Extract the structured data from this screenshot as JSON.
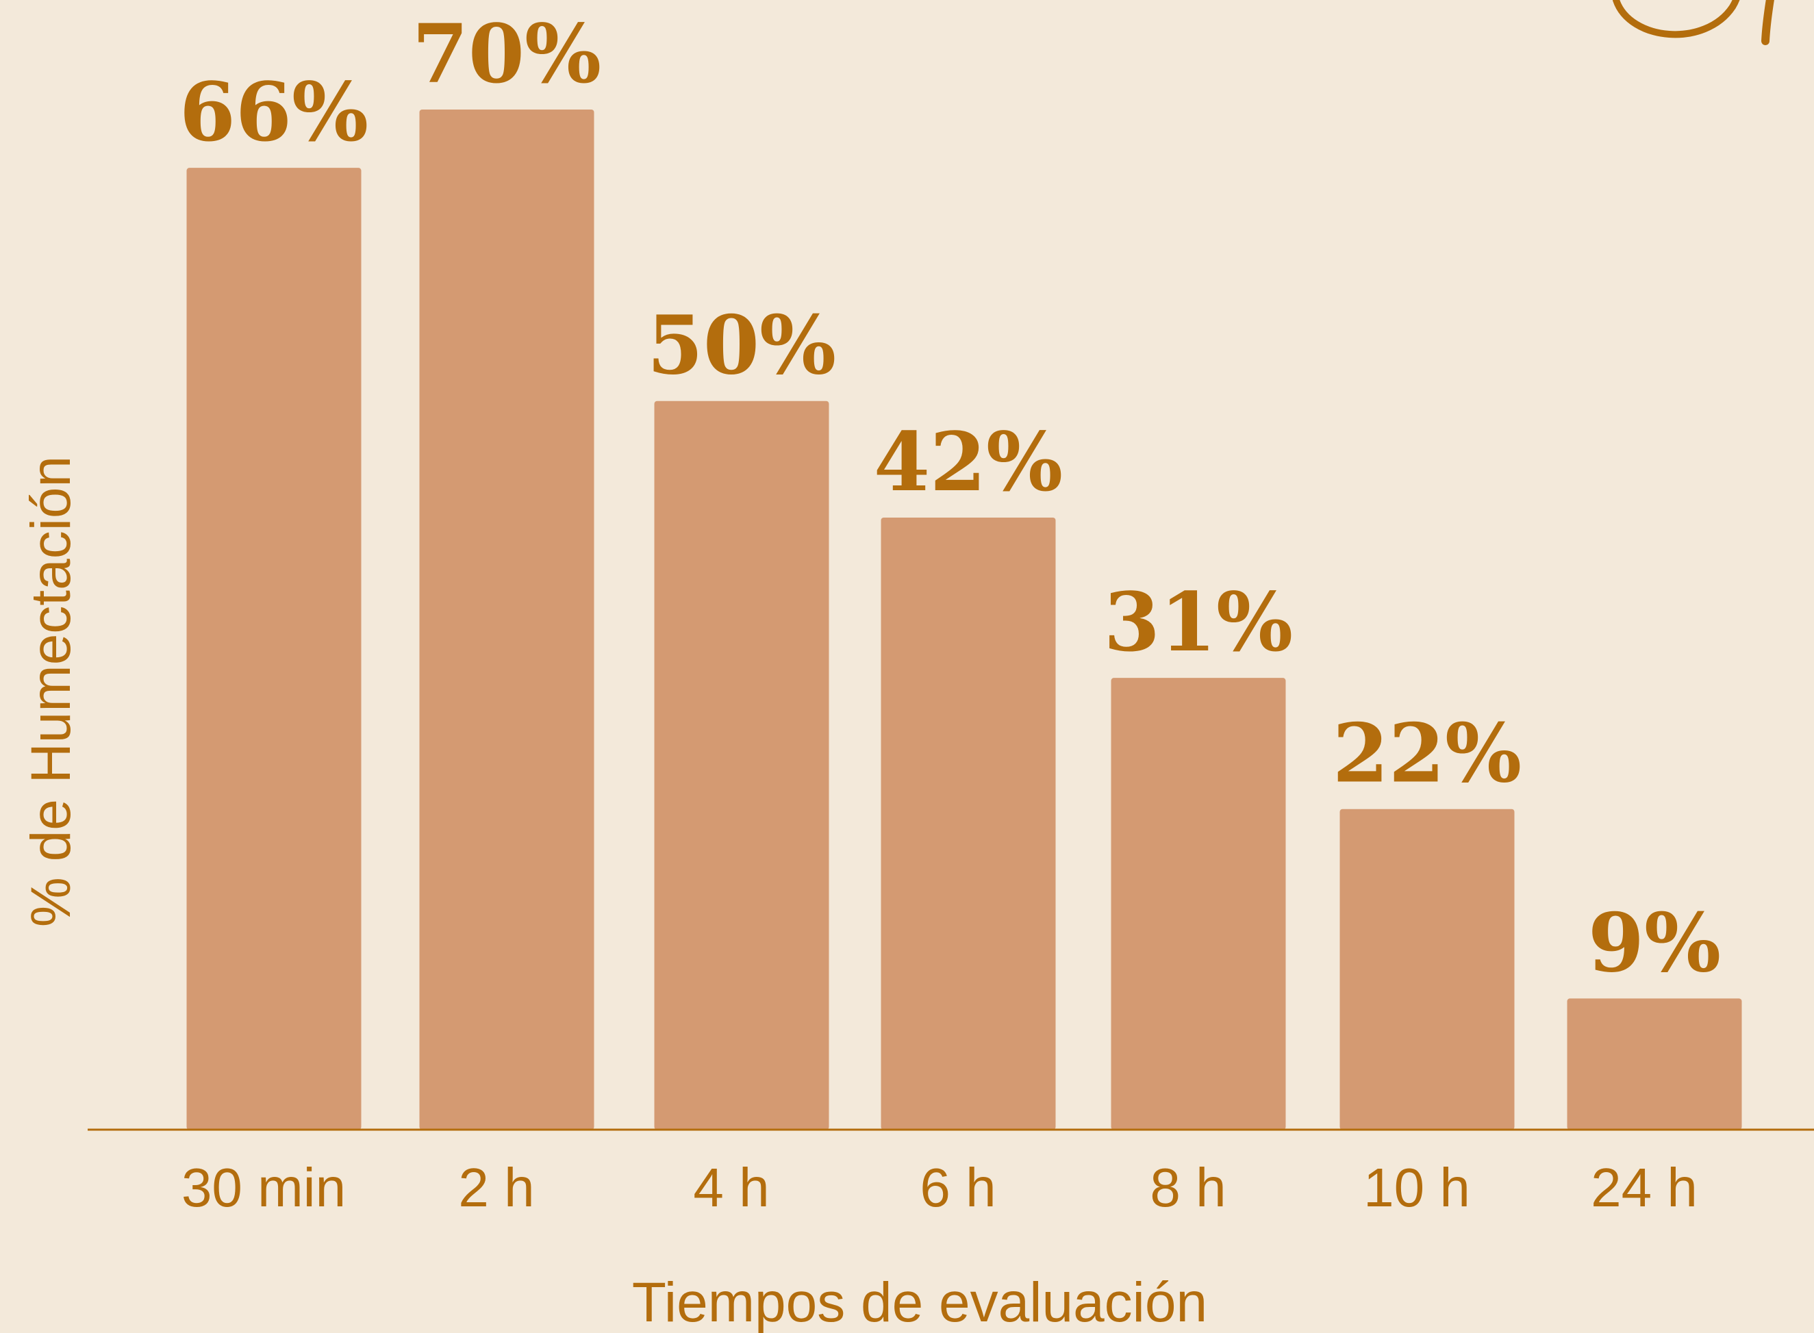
{
  "colors": {
    "background": "#f3e9da",
    "bar": "#d49a72",
    "text": "#b36d0d",
    "axis": "#b36d0d"
  },
  "chart_data": {
    "type": "bar",
    "categories": [
      "30 min",
      "2 h",
      "4 h",
      "6 h",
      "8 h",
      "10 h",
      "24 h"
    ],
    "values": [
      66,
      70,
      50,
      42,
      31,
      22,
      9
    ],
    "value_labels": [
      "66%",
      "70%",
      "50%",
      "42%",
      "31%",
      "22%",
      "9%"
    ],
    "title": "",
    "xlabel": "Tiempos de evaluación",
    "ylabel": "% de Humectación",
    "ylim": [
      0,
      70
    ],
    "grid": false,
    "legend": "none"
  }
}
